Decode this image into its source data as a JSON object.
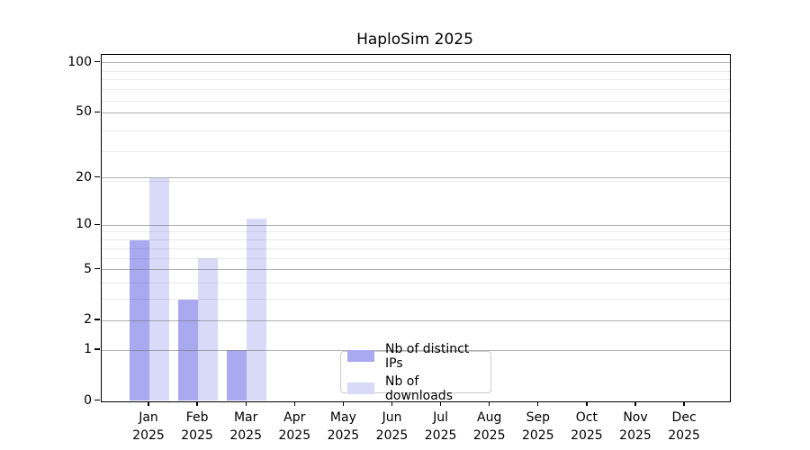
{
  "title": "HaploSim 2025",
  "chart_data": {
    "type": "bar",
    "title": "HaploSim 2025",
    "categories": [
      "Jan 2025",
      "Feb 2025",
      "Mar 2025",
      "Apr 2025",
      "May 2025",
      "Jun 2025",
      "Jul 2025",
      "Aug 2025",
      "Sep 2025",
      "Oct 2025",
      "Nov 2025",
      "Dec 2025"
    ],
    "series": [
      {
        "name": "Nb of distinct IPs",
        "color": "#a9a9f0",
        "values": [
          8,
          3,
          1,
          0,
          0,
          0,
          0,
          0,
          0,
          0,
          0,
          0
        ]
      },
      {
        "name": "Nb of downloads",
        "color": "#d9d9f8",
        "values": [
          20,
          6,
          11,
          0,
          0,
          0,
          0,
          0,
          0,
          0,
          0,
          0
        ]
      }
    ],
    "xlabel": "",
    "ylabel": "",
    "yscale": "log1p",
    "ytick_values": [
      0,
      1,
      2,
      5,
      10,
      20,
      50,
      100
    ],
    "ylim": [
      0,
      112
    ],
    "grid": "horizontal major + minor, drawn over bars",
    "legend_position": "bottom-center inside axes",
    "colors": {
      "major_grid": "#b0b0b0",
      "minor_grid": "#ebebeb",
      "axis": "#000000",
      "background": "#ffffff"
    }
  }
}
